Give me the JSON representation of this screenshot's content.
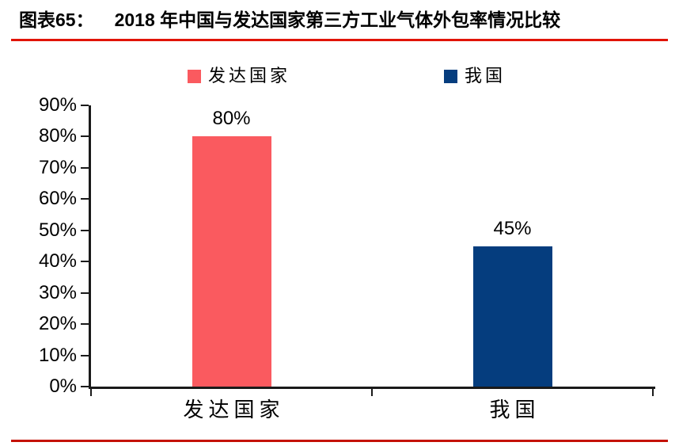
{
  "page": {
    "background": "#ffffff",
    "top_rule_color": "#e11408",
    "bottom_rule_color": "#c41104"
  },
  "header": {
    "figure_label": "图表65：",
    "figure_title": "2018 年中国与发达国家第三方工业气体外包率情况比较"
  },
  "chart_data": {
    "type": "bar",
    "title": "2018 年中国与发达国家第三方工业气体外包率情况比较",
    "categories": [
      "发达国家",
      "我国"
    ],
    "values": [
      80,
      45
    ],
    "value_labels": [
      "80%",
      "45%"
    ],
    "bar_colors": [
      "#fa5a5f",
      "#053d7e"
    ],
    "legend": [
      {
        "label": "发达国家",
        "color": "#fa5a5f"
      },
      {
        "label": "我国",
        "color": "#053d7e"
      }
    ],
    "legend_position": "top",
    "xlabel": "",
    "ylabel": "",
    "ylim": [
      0,
      90
    ],
    "ytick_step": 10,
    "ytick_labels": [
      "0%",
      "10%",
      "20%",
      "30%",
      "40%",
      "50%",
      "60%",
      "70%",
      "80%",
      "90%"
    ],
    "grid": false,
    "axis_color": "#1a1a1a"
  }
}
